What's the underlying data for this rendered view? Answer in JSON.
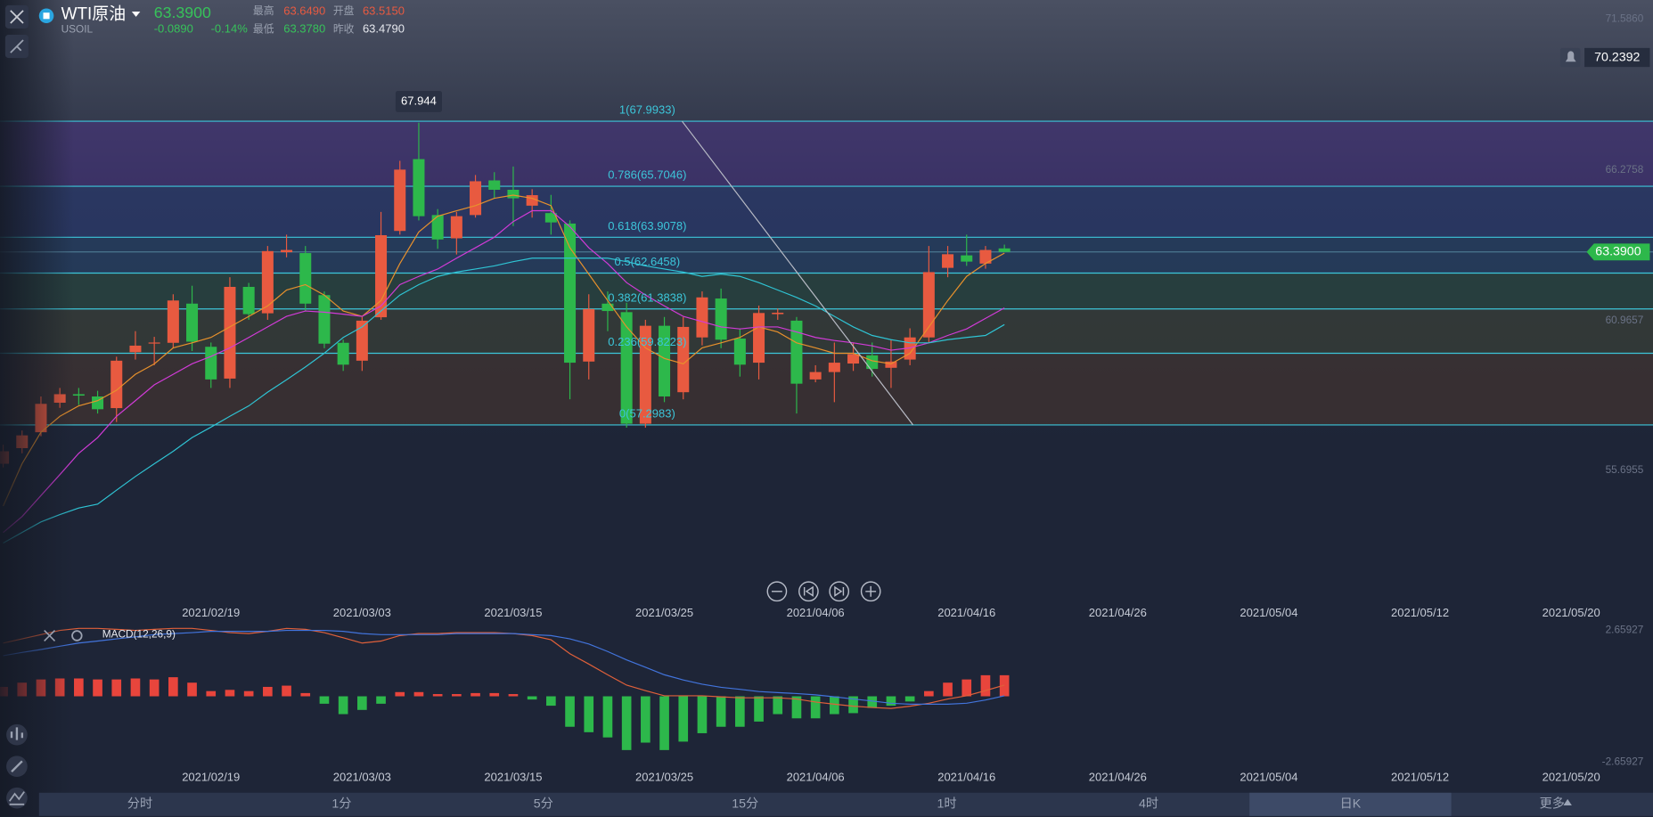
{
  "header": {
    "name": "WTI原油",
    "symbol": "USOIL",
    "price": "63.3900",
    "change": "-0.0890",
    "change_pct": "-0.14%",
    "stats": [
      {
        "label": "最高",
        "value": "63.6490"
      },
      {
        "label": "开盘",
        "value": "63.5150"
      },
      {
        "label": "最低",
        "value": "63.3780"
      },
      {
        "label": "昨收",
        "value": "63.4790"
      }
    ]
  },
  "tabs": [
    {
      "label": "分时"
    },
    {
      "label": "1分"
    },
    {
      "label": "5分"
    },
    {
      "label": "15分"
    },
    {
      "label": "1时"
    },
    {
      "label": "4时"
    },
    {
      "label": "日K",
      "active": true
    },
    {
      "label": "更多"
    }
  ],
  "chart_data": [
    {
      "type": "candlestick",
      "categories": [
        null,
        null,
        null,
        null,
        null,
        null,
        null,
        null,
        null,
        null,
        null,
        "2021/02/19",
        null,
        null,
        null,
        null,
        null,
        null,
        null,
        "2021/03/03",
        null,
        null,
        null,
        null,
        null,
        null,
        null,
        "2021/03/15",
        null,
        null,
        null,
        null,
        null,
        null,
        null,
        "2021/03/25",
        null,
        null,
        null,
        null,
        null,
        null,
        null,
        "2021/04/06",
        null,
        null,
        null,
        null,
        null,
        null,
        null,
        "2021/04/16",
        null,
        null,
        null,
        null,
        null,
        null,
        null,
        "2021/04/26",
        null,
        null,
        null,
        null,
        null,
        null,
        null,
        "2021/05/04",
        null,
        null,
        null,
        null,
        null,
        null,
        null,
        "2021/05/12",
        null,
        null,
        null,
        null,
        null,
        null,
        null,
        "2021/05/20"
      ],
      "open": [
        55.93,
        56.48,
        57.04,
        58.08,
        58.38,
        58.3,
        57.89,
        59.86,
        60.19,
        60.19,
        61.57,
        60.05,
        58.93,
        62.16,
        61.23,
        63.38,
        63.35,
        61.87,
        60.19,
        59.56,
        61.09,
        64.13,
        66.66,
        64.69,
        63.87,
        64.69,
        65.91,
        65.58,
        65.02,
        64.76,
        64.39,
        59.53,
        61.57,
        61.27,
        57.34,
        60.79,
        58.45,
        60.38,
        61.75,
        60.34,
        59.49,
        61.2,
        60.97,
        58.9,
        59.16,
        59.46,
        59.75,
        59.31,
        59.6,
        60.38,
        62.83,
        63.27,
        62.98,
        63.515,
        null,
        null,
        null,
        null,
        null,
        null,
        null,
        null,
        null,
        null,
        null,
        null,
        null,
        null,
        null,
        null,
        null,
        null,
        null,
        null,
        null,
        null,
        null,
        null,
        null,
        null,
        null,
        null,
        null,
        null
      ],
      "high": [
        56.6,
        57.1,
        58.3,
        58.6,
        58.6,
        58.5,
        59.7,
        60.6,
        60.4,
        61.9,
        62.2,
        60.2,
        62.5,
        62.3,
        63.6,
        64.0,
        63.6,
        62.0,
        60.3,
        61.1,
        64.8,
        66.6,
        67.944,
        64.9,
        64.8,
        66.1,
        66.2,
        66.4,
        65.6,
        65.4,
        64.5,
        61.9,
        62.0,
        61.6,
        61.0,
        61.1,
        61.1,
        62.0,
        62.1,
        60.7,
        61.5,
        61.4,
        61.1,
        59.4,
        60.2,
        60.2,
        60.2,
        60.3,
        60.7,
        63.6,
        63.6,
        64.0,
        63.6,
        63.649,
        null,
        null,
        null,
        null,
        null,
        null,
        null,
        null,
        null,
        null,
        null,
        null,
        null,
        null,
        null,
        null,
        null,
        null,
        null,
        null,
        null,
        null,
        null,
        null,
        null,
        null,
        null,
        null,
        null,
        null
      ],
      "low": [
        55.8,
        56.3,
        56.9,
        57.9,
        58.0,
        57.7,
        57.4,
        59.6,
        59.4,
        60.0,
        59.9,
        58.6,
        58.6,
        61.0,
        61.0,
        63.2,
        61.3,
        60.0,
        59.2,
        59.2,
        61.0,
        64.0,
        64.5,
        63.5,
        63.3,
        64.6,
        65.3,
        64.3,
        64.6,
        64.0,
        58.2,
        58.9,
        60.6,
        57.2,
        57.2,
        58.1,
        58.2,
        60.1,
        60.0,
        59.0,
        58.9,
        61.0,
        57.7,
        58.8,
        58.1,
        59.2,
        59.0,
        58.6,
        59.4,
        60.2,
        62.5,
        62.9,
        62.8,
        63.378,
        null,
        null,
        null,
        null,
        null,
        null,
        null,
        null,
        null,
        null,
        null,
        null,
        null,
        null,
        null,
        null,
        null,
        null,
        null,
        null,
        null,
        null,
        null,
        null,
        null,
        null,
        null,
        null,
        null,
        null
      ],
      "close": [
        56.37,
        56.93,
        58.04,
        58.38,
        58.33,
        57.85,
        59.56,
        60.09,
        60.2,
        61.68,
        60.23,
        58.9,
        62.16,
        61.2,
        63.42,
        63.46,
        61.57,
        60.16,
        59.42,
        60.97,
        63.98,
        66.29,
        64.65,
        63.83,
        64.65,
        65.88,
        65.58,
        65.28,
        65.39,
        64.43,
        59.49,
        61.38,
        61.31,
        57.34,
        60.79,
        58.3,
        60.75,
        61.79,
        60.3,
        59.42,
        61.24,
        61.25,
        58.75,
        59.16,
        59.49,
        59.79,
        59.27,
        59.53,
        60.38,
        62.68,
        63.31,
        63.05,
        63.46,
        63.39,
        null,
        null,
        null,
        null,
        null,
        null,
        null,
        null,
        null,
        null,
        null,
        null,
        null,
        null,
        null,
        null,
        null,
        null,
        null,
        null,
        null,
        null,
        null,
        null,
        null,
        null,
        null,
        null,
        null,
        null
      ],
      "up_color": "#e85a40",
      "down_color": "#2db84b",
      "series": [
        {
          "color": "#e8912c",
          "values": [
            54.44,
            55.93,
            57.04,
            57.6,
            57.97,
            58.15,
            58.52,
            59.08,
            59.45,
            60.01,
            60.19,
            60.38,
            60.75,
            61.12,
            61.49,
            62.05,
            62.24,
            61.87,
            61.31,
            61.12,
            61.68,
            62.98,
            64.09,
            64.65,
            64.84,
            65.02,
            65.28,
            65.39,
            65.28,
            65.02,
            63.54,
            62.61,
            61.68,
            60.75,
            60.01,
            59.64,
            59.45,
            60.01,
            60.19,
            60.38,
            60.75,
            60.57,
            60.19,
            60.01,
            59.82,
            59.82,
            59.56,
            59.45,
            59.82,
            60.75,
            61.68,
            62.53,
            62.98,
            63.35,
            null,
            null,
            null,
            null,
            null,
            null,
            null,
            null,
            null,
            null,
            null,
            null,
            null,
            null,
            null,
            null,
            null,
            null,
            null,
            null,
            null,
            null,
            null,
            null,
            null,
            null,
            null,
            null,
            null,
            null
          ]
        },
        {
          "color": "#d23bd8",
          "values": [
            53.51,
            54.07,
            54.81,
            55.55,
            56.3,
            56.85,
            57.6,
            58.15,
            58.71,
            59.08,
            59.45,
            59.71,
            60.01,
            60.38,
            60.75,
            61.12,
            61.31,
            61.27,
            61.2,
            61.12,
            61.49,
            62.24,
            62.53,
            62.79,
            63.17,
            63.54,
            63.91,
            64.46,
            64.84,
            64.84,
            64.28,
            63.54,
            62.98,
            62.31,
            61.87,
            61.49,
            61.12,
            60.94,
            60.75,
            60.68,
            60.75,
            60.75,
            60.57,
            60.38,
            60.27,
            60.19,
            60.08,
            59.93,
            60.01,
            60.19,
            60.45,
            60.68,
            61.05,
            61.42,
            null,
            null,
            null,
            null,
            null,
            null,
            null,
            null,
            null,
            null,
            null,
            null,
            null,
            null,
            null,
            null,
            null,
            null,
            null,
            null,
            null,
            null,
            null,
            null,
            null,
            null,
            null,
            null,
            null,
            null
          ]
        },
        {
          "color": "#2fc4d4",
          "values": [
            53.14,
            53.51,
            53.88,
            54.14,
            54.37,
            54.51,
            55.0,
            55.48,
            55.93,
            56.37,
            56.85,
            57.22,
            57.6,
            57.97,
            58.45,
            58.89,
            59.34,
            59.82,
            60.38,
            60.75,
            61.31,
            61.87,
            62.24,
            62.53,
            62.68,
            62.79,
            62.9,
            63.05,
            63.17,
            63.17,
            63.17,
            63.17,
            63.17,
            63.05,
            62.9,
            62.79,
            62.68,
            62.53,
            62.61,
            62.53,
            62.31,
            62.05,
            61.79,
            61.49,
            61.12,
            60.75,
            60.45,
            60.3,
            60.19,
            60.19,
            60.3,
            60.38,
            60.45,
            60.83,
            null,
            null,
            null,
            null,
            null,
            null,
            null,
            null,
            null,
            null,
            null,
            null,
            null,
            null,
            null,
            null,
            null,
            null,
            null,
            null,
            null,
            null,
            null,
            null,
            null,
            null,
            null,
            null,
            null,
            null
          ]
        }
      ],
      "ylim": [
        51.1,
        72.264
      ],
      "yticks": [
        {
          "value": 71.586,
          "label": "71.5860"
        },
        66.2758,
        60.9657,
        55.6955
      ],
      "grid": false,
      "fib_levels": [
        {
          "price": 67.9933,
          "label": "1(67.9933)"
        },
        {
          "price": 65.7046,
          "label": "0.786(65.7046)"
        },
        {
          "price": 63.9078,
          "label": "0.618(63.9078)"
        },
        {
          "price": 62.6458,
          "label": "0.5(62.6458)"
        },
        {
          "price": 61.3838,
          "label": "0.382(61.3838)"
        },
        {
          "price": 59.8223,
          "label": "0.236(59.8223)"
        },
        {
          "price": 57.2983,
          "label": "0(57.2983)"
        }
      ],
      "fib_color": "#3cc6da",
      "band_colors": [
        "#4a3584",
        "#2e3f7c",
        "#27476f",
        "#2c4e40",
        "#3f4634",
        "#4a372e"
      ],
      "annotation": "67.944",
      "alert_price": 70.2392,
      "last_price": {
        "value": 63.39,
        "label": "63.3900"
      }
    },
    {
      "type": "macd",
      "title": "MACD(12,26,9)",
      "histogram": [
        0.38,
        0.55,
        0.68,
        0.72,
        0.72,
        0.68,
        0.68,
        0.72,
        0.68,
        0.77,
        0.55,
        0.21,
        0.26,
        0.21,
        0.38,
        0.43,
        0.13,
        -0.3,
        -0.72,
        -0.55,
        -0.3,
        0.17,
        0.17,
        0.09,
        0.09,
        0.13,
        0.13,
        0.09,
        -0.13,
        -0.38,
        -1.23,
        -1.45,
        -1.66,
        -2.17,
        -1.87,
        -2.17,
        -1.83,
        -1.49,
        -1.23,
        -1.23,
        -1.02,
        -0.72,
        -0.89,
        -0.89,
        -0.72,
        -0.68,
        -0.47,
        -0.38,
        -0.21,
        0.21,
        0.55,
        0.68,
        0.85,
        0.85,
        null,
        null,
        null,
        null,
        null,
        null,
        null,
        null,
        null,
        null,
        null,
        null,
        null,
        null,
        null,
        null,
        null,
        null,
        null,
        null,
        null,
        null,
        null,
        null,
        null,
        null,
        null,
        null,
        null,
        null
      ],
      "series": [
        {
          "color": "#e0603a",
          "values": [
            2.15,
            2.32,
            2.49,
            2.66,
            2.74,
            2.74,
            2.7,
            2.66,
            2.7,
            2.74,
            2.74,
            2.66,
            2.57,
            2.53,
            2.62,
            2.74,
            2.7,
            2.57,
            2.36,
            2.15,
            2.23,
            2.45,
            2.53,
            2.53,
            2.57,
            2.57,
            2.57,
            2.53,
            2.45,
            2.28,
            1.72,
            1.3,
            0.87,
            0.45,
            0.23,
            0.02,
            0.02,
            0.02,
            -0.02,
            -0.06,
            -0.06,
            -0.06,
            -0.11,
            -0.23,
            -0.32,
            -0.4,
            -0.45,
            -0.49,
            -0.4,
            -0.28,
            -0.11,
            0.02,
            0.23,
            0.45,
            null,
            null,
            null,
            null,
            null,
            null,
            null,
            null,
            null,
            null,
            null,
            null,
            null,
            null,
            null,
            null,
            null,
            null,
            null,
            null,
            null,
            null,
            null,
            null,
            null,
            null,
            null,
            null,
            null,
            null
          ]
        },
        {
          "color": "#4274dc",
          "values": [
            1.64,
            1.77,
            1.89,
            2.02,
            2.15,
            2.23,
            2.32,
            2.4,
            2.49,
            2.53,
            2.57,
            2.62,
            2.62,
            2.62,
            2.62,
            2.66,
            2.66,
            2.66,
            2.62,
            2.53,
            2.49,
            2.49,
            2.49,
            2.49,
            2.53,
            2.53,
            2.53,
            2.53,
            2.49,
            2.45,
            2.32,
            2.11,
            1.81,
            1.47,
            1.17,
            0.87,
            0.66,
            0.49,
            0.36,
            0.28,
            0.19,
            0.15,
            0.11,
            0.06,
            -0.02,
            -0.11,
            -0.19,
            -0.28,
            -0.32,
            -0.32,
            -0.32,
            -0.28,
            -0.15,
            0.02,
            null,
            null,
            null,
            null,
            null,
            null,
            null,
            null,
            null,
            null,
            null,
            null,
            null,
            null,
            null,
            null,
            null,
            null,
            null,
            null,
            null,
            null,
            null,
            null,
            null,
            null,
            null,
            null,
            null,
            null
          ]
        }
      ],
      "up_color": "#e8453c",
      "down_color": "#2db84b",
      "ylim": [
        -2.65927,
        2.65927
      ],
      "yticks": [
        2.65927,
        -2.65927
      ]
    }
  ]
}
